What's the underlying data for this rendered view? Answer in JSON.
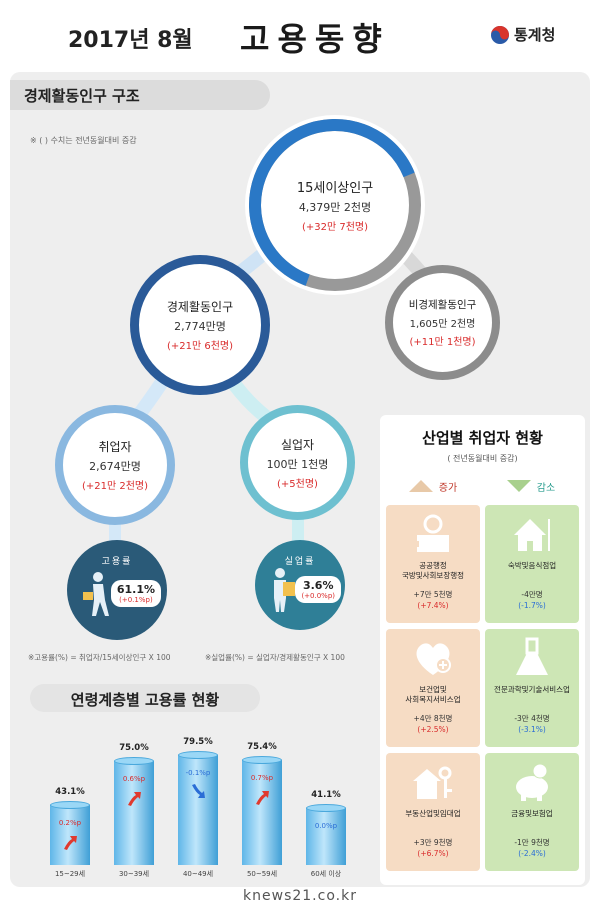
{
  "header": {
    "date": "2017년 8월",
    "title": "고용동향",
    "logo_text": "통계청",
    "logo_colors": [
      "#d9342b",
      "#2a5aa8"
    ]
  },
  "structure": {
    "section_title": "경제활동인구 구조",
    "note": "※ ( ) 수치는 전년동월대비 증감",
    "pop15": {
      "label": "15세이상인구",
      "value": "4,379만 2천명",
      "change": "(+32만 7천명)"
    },
    "econ": {
      "label": "경제활동인구",
      "value": "2,774만명",
      "change": "(+21만 6천명)"
    },
    "nonecon": {
      "label": "비경제활동인구",
      "value": "1,605만 2천명",
      "change": "(+11만 1천명)"
    },
    "employed": {
      "label": "취업자",
      "value": "2,674만명",
      "change": "(+21만 2천명)"
    },
    "unemployed": {
      "label": "실업자",
      "value": "100만 1천명",
      "change": "(+5천명)"
    },
    "emp_rate": {
      "label": "고용률",
      "value": "61.1%",
      "delta": "(+0.1%p)"
    },
    "unemp_rate": {
      "label": "실업률",
      "value": "3.6%",
      "delta": "(+0.0%p)"
    },
    "formula_emp": "※고용률(%) = 취업자/15세이상인구 X 100",
    "formula_unemp": "※실업률(%) = 실업자/경제활동인구 X 100"
  },
  "industry": {
    "title": "산업별 취업자 현황",
    "subtitle": "( 전년동월대비 증감)",
    "increase_label": "증가",
    "decrease_label": "감소",
    "tiles": [
      {
        "side": "inc",
        "icon": "papers-icon",
        "name": "공공행정\n국방및사회보장행정",
        "value": "+7만 5천명",
        "pct": "(+7.4%)"
      },
      {
        "side": "dec",
        "icon": "restaurant-icon",
        "name": "숙박및음식점업",
        "value": "-4만명",
        "pct": "(-1.7%)"
      },
      {
        "side": "inc",
        "icon": "heart-care-icon",
        "name": "보건업및\n사회복지서비스업",
        "value": "+4만 8천명",
        "pct": "(+2.5%)"
      },
      {
        "side": "dec",
        "icon": "flask-icon",
        "name": "전문과학및기술서비스업",
        "value": "-3만 4천명",
        "pct": "(-3.1%)"
      },
      {
        "side": "inc",
        "icon": "house-key-icon",
        "name": "부동산업및임대업",
        "value": "+3만 9천명",
        "pct": "(+6.7%)"
      },
      {
        "side": "dec",
        "icon": "piggy-bank-icon",
        "name": "금융및보험업",
        "value": "-1만 9천명",
        "pct": "(-2.4%)"
      }
    ]
  },
  "age_chart": {
    "title": "연령계층별 고용률 현황",
    "chart_data": {
      "type": "bar",
      "categories": [
        "15~29세",
        "30~39세",
        "40~49세",
        "50~59세",
        "60세 이상"
      ],
      "values": [
        43.1,
        75.0,
        79.5,
        75.4,
        41.1
      ],
      "value_labels": [
        "43.1%",
        "75.0%",
        "79.5%",
        "75.4%",
        "41.1%"
      ],
      "deltas": [
        "0.2%p",
        "0.6%p",
        "-0.1%p",
        "0.7%p",
        "0.0%p"
      ],
      "delta_direction": [
        "up",
        "up",
        "down",
        "up",
        "flat"
      ],
      "unit": "%"
    }
  },
  "footer": {
    "url": "knews21.co.kr"
  }
}
